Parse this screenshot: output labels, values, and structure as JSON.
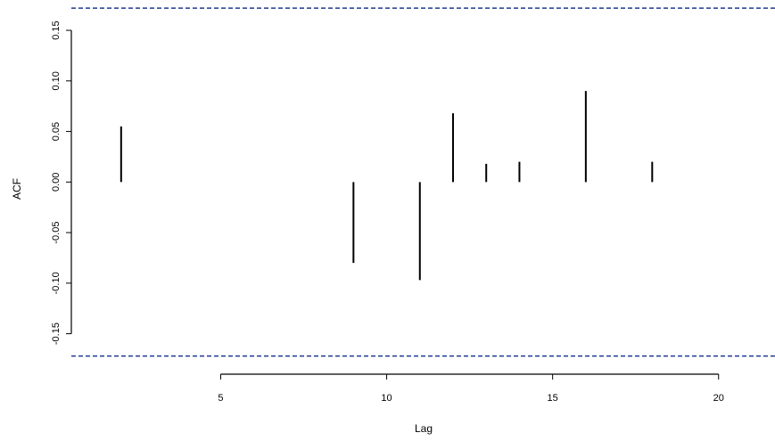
{
  "chart_data": {
    "type": "bar",
    "xlabel": "Lag",
    "ylabel": "ACF",
    "xlim": [
      0.5,
      21.7
    ],
    "ylim": [
      -0.19,
      0.18
    ],
    "x": [
      2,
      9,
      11,
      12,
      13,
      14,
      16,
      18
    ],
    "values": [
      0.055,
      -0.08,
      -0.097,
      0.068,
      0.018,
      0.02,
      0.09,
      0.02
    ],
    "xticks": [
      5,
      10,
      15,
      20
    ],
    "yticks": [
      -0.15,
      -0.1,
      -0.05,
      0.0,
      0.05,
      0.1,
      0.15
    ],
    "ytick_labels": [
      "-0.15",
      "-0.10",
      "-0.05",
      "0.00",
      "0.05",
      "0.10",
      "0.15"
    ],
    "confidence_bounds": [
      0.172,
      -0.172
    ],
    "colors": {
      "bars": "#000000",
      "confidence": "#1f3a93"
    },
    "grid": false
  }
}
